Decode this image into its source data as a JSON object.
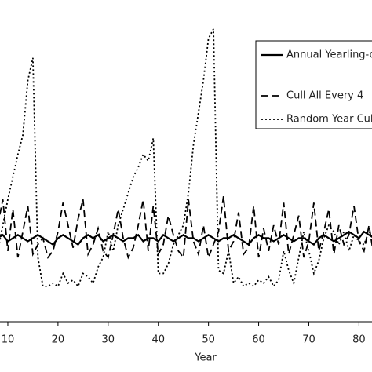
{
  "chart_data": {
    "type": "line",
    "x_label": "Year",
    "x": [
      8,
      9,
      10,
      11,
      12,
      13,
      14,
      15,
      16,
      17,
      18,
      19,
      20,
      21,
      22,
      23,
      24,
      25,
      26,
      27,
      28,
      29,
      30,
      31,
      32,
      33,
      34,
      35,
      36,
      37,
      38,
      39,
      40,
      41,
      42,
      43,
      44,
      45,
      46,
      47,
      48,
      49,
      50,
      51,
      52,
      53,
      54,
      55,
      56,
      57,
      58,
      59,
      60,
      61,
      62,
      63,
      64,
      65,
      66,
      67,
      68,
      69,
      70,
      71,
      72,
      73,
      74,
      75,
      76,
      77,
      78,
      79,
      80,
      81,
      82,
      83
    ],
    "xlim": [
      8.44,
      82.6
    ],
    "xticks": [
      10,
      20,
      30,
      40,
      50,
      60,
      70,
      80
    ],
    "ylim": [
      0,
      100
    ],
    "series": [
      {
        "name": "Annual Yearling-on",
        "color": "#000000",
        "dash": "none",
        "values": [
          26,
          27,
          25,
          26,
          27,
          26,
          25,
          26,
          27,
          26,
          25,
          24,
          26,
          27,
          26,
          25,
          24,
          26,
          27,
          26,
          27,
          25,
          26,
          27,
          26,
          25,
          26,
          26,
          27,
          25,
          26,
          26,
          25,
          27,
          26,
          25,
          26,
          27,
          26,
          26,
          25,
          26,
          27,
          26,
          25,
          26,
          26,
          27,
          26,
          25,
          24,
          26,
          27,
          26,
          26,
          25,
          26,
          27,
          26,
          25,
          26,
          26,
          25,
          24,
          26,
          27,
          26,
          25,
          26,
          27,
          28,
          27,
          26,
          28,
          27,
          26
        ]
      },
      {
        "name": "Cull All Every 4",
        "color": "#000000",
        "dash": "9,5",
        "values": [
          30,
          38,
          22,
          35,
          20,
          28,
          36,
          21,
          24,
          26,
          20,
          22,
          28,
          37,
          30,
          23,
          32,
          38,
          21,
          24,
          29,
          22,
          20,
          27,
          35,
          26,
          20,
          23,
          30,
          38,
          22,
          36,
          21,
          24,
          33,
          27,
          22,
          20,
          38,
          25,
          21,
          30,
          20,
          24,
          28,
          39,
          22,
          25,
          34,
          21,
          23,
          36,
          20,
          29,
          22,
          30,
          24,
          37,
          21,
          27,
          33,
          20,
          25,
          37,
          22,
          28,
          35,
          21,
          30,
          24,
          27,
          36,
          25,
          22,
          30,
          20
        ]
      },
      {
        "name": "Random Year Cull",
        "color": "#000000",
        "dash": "2,3",
        "values": [
          22,
          30,
          38,
          45,
          52,
          58,
          75,
          82,
          20,
          11,
          11,
          12,
          11,
          15,
          12,
          13,
          11,
          15,
          14,
          12,
          17,
          20,
          28,
          22,
          30,
          35,
          40,
          45,
          48,
          52,
          50,
          57,
          15,
          15,
          18,
          24,
          27,
          30,
          40,
          55,
          65,
          75,
          88,
          91,
          16,
          15,
          22,
          12,
          14,
          11,
          12,
          11,
          13,
          12,
          14,
          11,
          13,
          22,
          16,
          12,
          20,
          28,
          22,
          15,
          19,
          26,
          30,
          28,
          24,
          28,
          22,
          27,
          25,
          24,
          28,
          26
        ]
      }
    ]
  }
}
